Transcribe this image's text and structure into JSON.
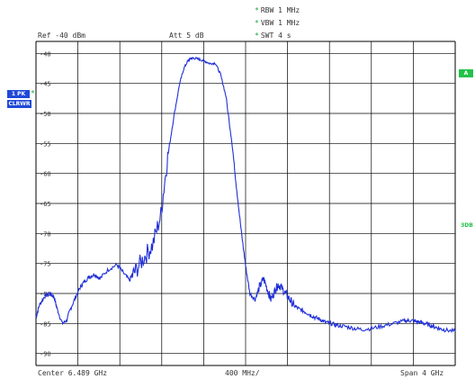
{
  "header": {
    "rbw": "RBW 1 MHz",
    "vbw": "VBW 1 MHz",
    "swt": "SWT 4 s",
    "ref": "Ref -40 dBm",
    "att": "Att  5 dB"
  },
  "markers": {
    "trace_label_line1": "1 PK",
    "trace_label_line2": "CLRWR",
    "a_badge": "A",
    "db_label": "3DB"
  },
  "footer": {
    "center": "Center  6.489 GHz",
    "per_div": "400 MHz/",
    "span": "Span  4 GHz"
  },
  "colors": {
    "trace": "#1f2fd8",
    "grid": "#000000",
    "badge_blue": "#1f49d8",
    "badge_green": "#22c24a",
    "asterisk": "#1aa83a"
  },
  "chart_data": {
    "type": "line",
    "x_unit": "GHz",
    "y_unit": "dBm",
    "xlim": [
      4.489,
      8.489
    ],
    "ylim": [
      -92,
      -38
    ],
    "x_grid_step": 0.4,
    "y_ticks": [
      "-40",
      "-45",
      "-50",
      "-55",
      "-60",
      "-65",
      "-70",
      "-75",
      "-80",
      "-85",
      "-90"
    ],
    "y_tick_values": [
      -40,
      -45,
      -50,
      -55,
      -60,
      -65,
      -70,
      -75,
      -80,
      -85,
      -90
    ],
    "grid": true,
    "series": [
      {
        "x": [
          4.489,
          4.52,
          4.57,
          4.62,
          4.66,
          4.69,
          4.74,
          4.78,
          4.82,
          4.87,
          4.91,
          4.95,
          5.0,
          5.05,
          5.1,
          5.18,
          5.26,
          5.32,
          5.38,
          5.44,
          5.52,
          5.6,
          5.68,
          5.74,
          5.8,
          5.86,
          5.9,
          5.94,
          5.97,
          6.0,
          6.05,
          6.1,
          6.15,
          6.2,
          6.25,
          6.3,
          6.36,
          6.4,
          6.45,
          6.49,
          6.53,
          6.58,
          6.62,
          6.66,
          6.7,
          6.73,
          6.77,
          6.8,
          6.83,
          6.87,
          6.91,
          6.95,
          7.0,
          7.05,
          7.1,
          7.15,
          7.2,
          7.25,
          7.3,
          7.36,
          7.44,
          7.52,
          7.6,
          7.7,
          7.8,
          7.9,
          8.0,
          8.05,
          8.1,
          8.15,
          8.2,
          8.25,
          8.3,
          8.35,
          8.4,
          8.489
        ],
        "y": [
          -84,
          -82,
          -80.5,
          -80,
          -80.5,
          -82.5,
          -85,
          -84.5,
          -82.5,
          -80.5,
          -79,
          -78,
          -77.2,
          -76.8,
          -77.5,
          -76,
          -75.2,
          -76.5,
          -77.8,
          -76.2,
          -74,
          -72,
          -67,
          -58,
          -51,
          -45,
          -42.5,
          -41.2,
          -40.8,
          -40.8,
          -41,
          -41.3,
          -41.7,
          -41.6,
          -43.5,
          -47,
          -55,
          -62,
          -70,
          -75.5,
          -80,
          -81,
          -79,
          -77.5,
          -79.5,
          -81,
          -79.5,
          -78.5,
          -79,
          -80,
          -81,
          -82,
          -82.6,
          -83,
          -83.5,
          -84,
          -84.3,
          -84.8,
          -85,
          -85.3,
          -85.5,
          -85.8,
          -86,
          -85.8,
          -85.4,
          -85,
          -84.6,
          -84.5,
          -84.6,
          -84.8,
          -85,
          -85.3,
          -85.6,
          -85.9,
          -86.1,
          -86.3
        ]
      }
    ]
  }
}
